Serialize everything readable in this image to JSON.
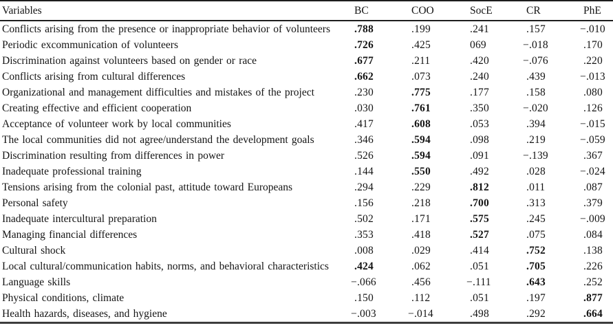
{
  "table": {
    "columns": [
      "Variables",
      "BC",
      "COO",
      "SocE",
      "CR",
      "PhE"
    ],
    "rows": [
      {
        "label": "Conflicts arising from the presence or inappropriate behavior of volunteers",
        "values": [
          ".788",
          ".199",
          ".241",
          ".157",
          "−.010"
        ],
        "bold": [
          0
        ]
      },
      {
        "label": "Periodic excommunication of volunteers",
        "values": [
          ".726",
          ".425",
          "069",
          "−.018",
          ".170"
        ],
        "bold": [
          0
        ]
      },
      {
        "label": "Discrimination against volunteers based on gender or race",
        "values": [
          ".677",
          ".211",
          ".420",
          "−.076",
          ".220"
        ],
        "bold": [
          0
        ]
      },
      {
        "label": "Conflicts arising from cultural differences",
        "values": [
          ".662",
          ".073",
          ".240",
          ".439",
          "−.013"
        ],
        "bold": [
          0
        ]
      },
      {
        "label": "Organizational and management difficulties and mistakes of the project",
        "values": [
          ".230",
          ".775",
          ".177",
          ".158",
          ".080"
        ],
        "bold": [
          1
        ]
      },
      {
        "label": "Creating effective and efficient cooperation",
        "values": [
          ".030",
          ".761",
          ".350",
          "−.020",
          ".126"
        ],
        "bold": [
          1
        ]
      },
      {
        "label": "Acceptance of volunteer work by local communities",
        "values": [
          ".417",
          ".608",
          ".053",
          ".394",
          "−.015"
        ],
        "bold": [
          1
        ]
      },
      {
        "label": "The local communities did not agree/understand the development goals",
        "values": [
          ".346",
          ".594",
          ".098",
          ".219",
          "−.059"
        ],
        "bold": [
          1
        ]
      },
      {
        "label": "Discrimination resulting from differences in power",
        "values": [
          ".526",
          ".594",
          ".091",
          "−.139",
          ".367"
        ],
        "bold": [
          1
        ]
      },
      {
        "label": "Inadequate professional training",
        "values": [
          ".144",
          ".550",
          ".492",
          ".028",
          "−.024"
        ],
        "bold": [
          1
        ]
      },
      {
        "label": "Tensions arising from the colonial past, attitude toward Europeans",
        "values": [
          ".294",
          ".229",
          ".812",
          ".011",
          ".087"
        ],
        "bold": [
          2
        ]
      },
      {
        "label": "Personal safety",
        "values": [
          ".156",
          ".218",
          ".700",
          ".313",
          ".379"
        ],
        "bold": [
          2
        ]
      },
      {
        "label": "Inadequate intercultural preparation",
        "values": [
          ".502",
          ".171",
          ".575",
          ".245",
          "−.009"
        ],
        "bold": [
          2
        ]
      },
      {
        "label": "Managing financial differences",
        "values": [
          ".353",
          ".418",
          ".527",
          ".075",
          ".084"
        ],
        "bold": [
          2
        ]
      },
      {
        "label": "Cultural shock",
        "values": [
          ".008",
          ".029",
          ".414",
          ".752",
          ".138"
        ],
        "bold": [
          3
        ]
      },
      {
        "label": "Local cultural/communication habits, norms, and behavioral characteristics",
        "values": [
          ".424",
          ".062",
          ".051",
          ".705",
          ".226"
        ],
        "bold": [
          0,
          3
        ]
      },
      {
        "label": "Language skills",
        "values": [
          "−.066",
          ".456",
          "−.111",
          ".643",
          ".252"
        ],
        "bold": [
          3
        ]
      },
      {
        "label": "Physical conditions, climate",
        "values": [
          ".150",
          ".112",
          ".051",
          ".197",
          ".877"
        ],
        "bold": [
          4
        ]
      },
      {
        "label": "Health hazards, diseases, and hygiene",
        "values": [
          "−.003",
          "−.014",
          ".498",
          ".292",
          ".664"
        ],
        "bold": [
          4
        ]
      }
    ]
  }
}
